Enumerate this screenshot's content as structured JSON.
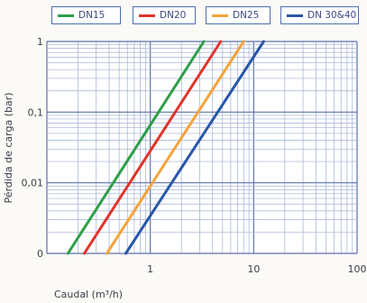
{
  "chart_data": {
    "type": "line",
    "xlabel": "Caudal (m³/h)",
    "ylabel": "Pérdida de carga (bar)",
    "x_scale": "log",
    "y_scale": "log",
    "xlim": [
      0.1,
      100
    ],
    "ylim": [
      0.001,
      1
    ],
    "x_ticks": [
      {
        "value": 1,
        "label": "1"
      },
      {
        "value": 10,
        "label": "10"
      },
      {
        "value": 100,
        "label": "100"
      }
    ],
    "y_ticks": [
      {
        "value": 0.001,
        "label": "0"
      },
      {
        "value": 0.01,
        "label": "0,01"
      },
      {
        "value": 0.1,
        "label": "0,1"
      },
      {
        "value": 1,
        "label": "1"
      }
    ],
    "grid": true,
    "legend_position": "top",
    "series": [
      {
        "name": "DN15",
        "color": "#2e9e48",
        "x": [
          0.16,
          3.3
        ],
        "y": [
          0.001,
          1
        ]
      },
      {
        "name": "DN20",
        "color": "#e0342c",
        "x": [
          0.23,
          4.8
        ],
        "y": [
          0.001,
          1
        ]
      },
      {
        "name": "DN25",
        "color": "#f4a33a",
        "x": [
          0.38,
          8.0
        ],
        "y": [
          0.001,
          1
        ]
      },
      {
        "name": "DN 30&40",
        "color": "#2857a8",
        "x": [
          0.58,
          12.5
        ],
        "y": [
          0.001,
          1
        ]
      }
    ]
  }
}
